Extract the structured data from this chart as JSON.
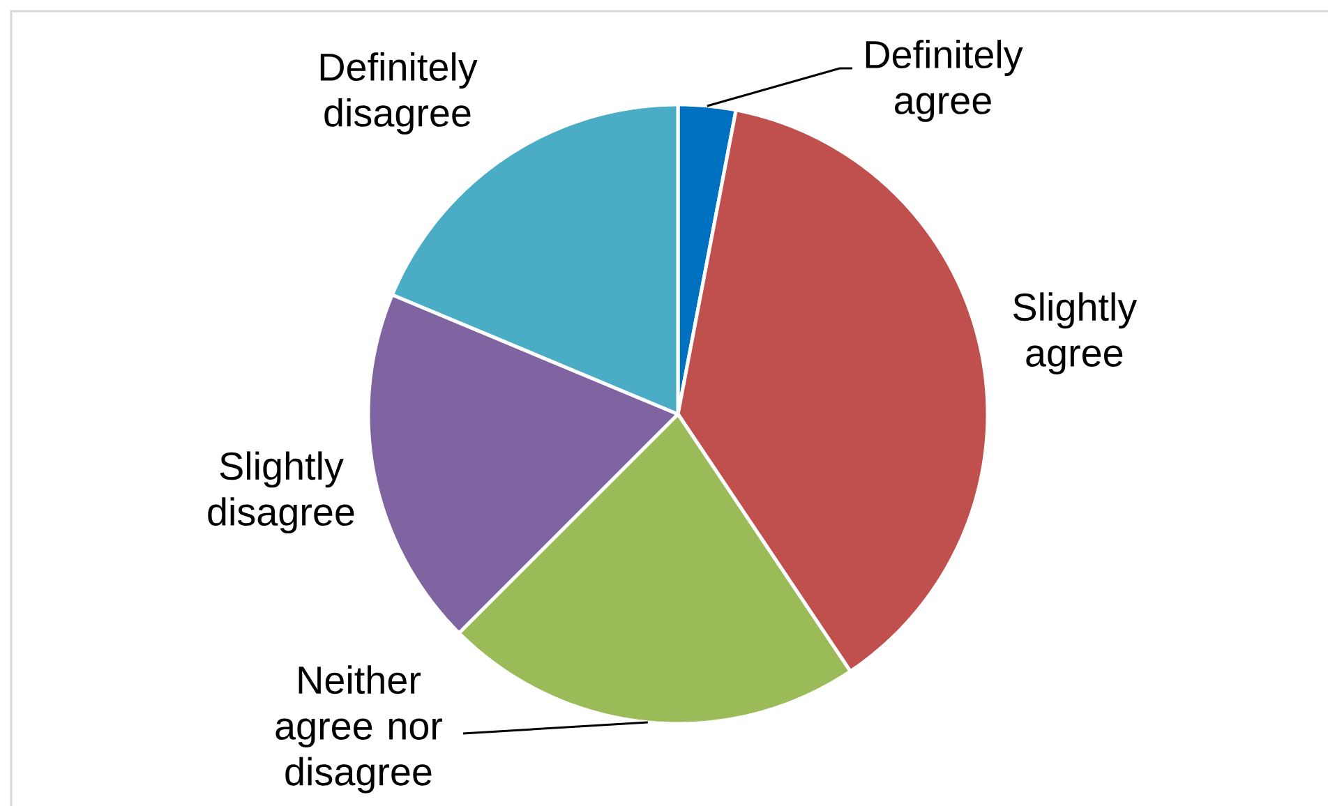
{
  "chart_data": {
    "type": "pie",
    "categories": [
      "Definitely agree",
      "Slightly agree",
      "Neither agree nor disagree",
      "Slightly disagree",
      "Definitely disagree"
    ],
    "values": [
      3,
      37.6,
      21.9,
      18.8,
      18.7
    ],
    "colors": [
      "#0070c0",
      "#c0504d",
      "#9bbb59",
      "#8064a2",
      "#4bacc6"
    ]
  }
}
